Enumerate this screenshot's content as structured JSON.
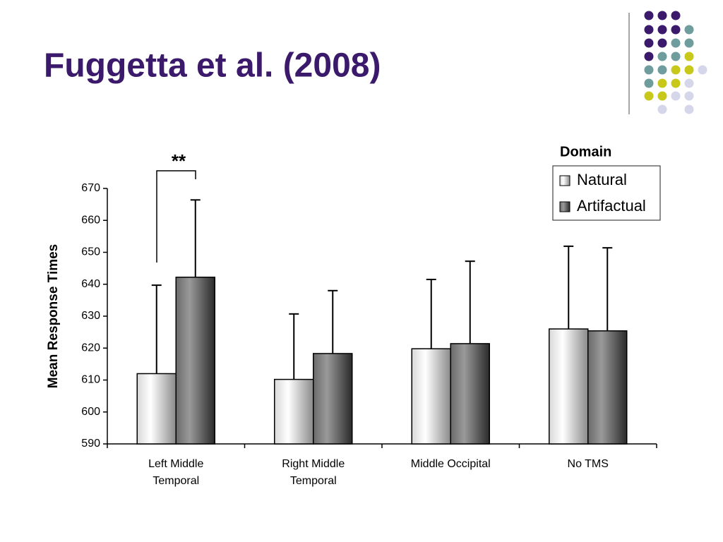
{
  "chart_data": {
    "type": "bar",
    "title": "Fuggetta et al. (2008)",
    "y_label": "Mean Response Times",
    "categories": [
      "Left Middle Temporal",
      "Right Middle Temporal",
      "Middle Occipital",
      "No TMS"
    ],
    "legend_title": "Domain",
    "legend": "top-right",
    "series": [
      {
        "name": "Natural",
        "color": "#d8d8d8",
        "values": [
          612,
          610.2,
          619.8,
          626
        ],
        "errors": [
          27.7,
          20.5,
          21.7,
          25.9
        ]
      },
      {
        "name": "Artifactual",
        "color": "#6a6a6a",
        "values": [
          642.2,
          618.3,
          621.4,
          625.4
        ],
        "errors": [
          24.2,
          19.7,
          25.8,
          26
        ]
      }
    ],
    "annotations": [
      "**"
    ],
    "ylim": [
      590,
      670
    ],
    "yticks": [
      590,
      600,
      610,
      620,
      630,
      640,
      650,
      660,
      670
    ],
    "grid": false
  }
}
